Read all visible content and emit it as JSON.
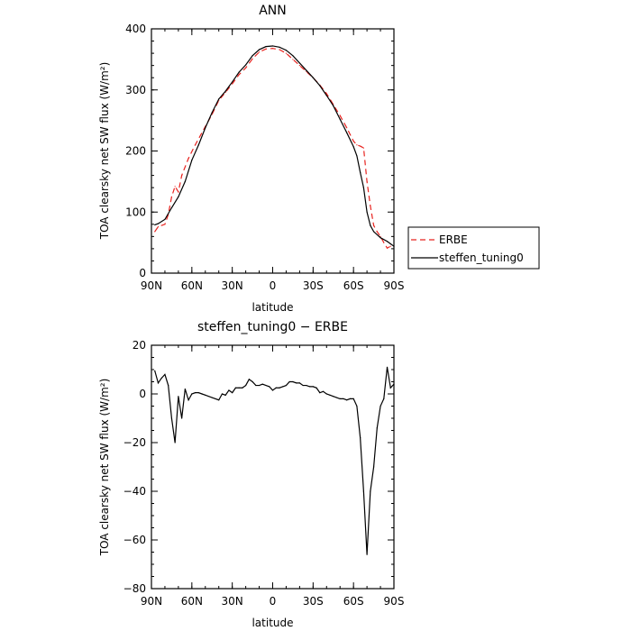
{
  "chart_data": [
    {
      "type": "line",
      "title": "ANN",
      "xlabel": "latitude",
      "ylabel": "TOA clearsky net SW flux (W/m²)",
      "xlim": [
        90,
        -90
      ],
      "ylim": [
        0,
        400
      ],
      "x_ticks": [
        90,
        60,
        30,
        0,
        -30,
        -60,
        -90
      ],
      "x_tick_labels": [
        "90N",
        "60N",
        "30N",
        "0",
        "30S",
        "60S",
        "90S"
      ],
      "y_ticks": [
        0,
        100,
        200,
        300,
        400
      ],
      "y_tick_labels": [
        "0",
        "100",
        "200",
        "300",
        "400"
      ],
      "legend": {
        "position": "right",
        "entries": [
          "ERBE",
          "steffen_tuning0"
        ]
      },
      "series": [
        {
          "name": "ERBE",
          "color": "#e8231f",
          "dash": "6,4",
          "points": [
            [
              87.5,
              68
            ],
            [
              85,
              76
            ],
            [
              80,
              80
            ],
            [
              77.5,
              96
            ],
            [
              75,
              125
            ],
            [
              72.5,
              142
            ],
            [
              70,
              133
            ],
            [
              67.5,
              160
            ],
            [
              62.5,
              188
            ],
            [
              57.5,
              210
            ],
            [
              50,
              240
            ],
            [
              45,
              260
            ],
            [
              40,
              283
            ],
            [
              35,
              296
            ],
            [
              30,
              310
            ],
            [
              25,
              325
            ],
            [
              20,
              336
            ],
            [
              15,
              351
            ],
            [
              10,
              362
            ],
            [
              5,
              367
            ],
            [
              0,
              368
            ],
            [
              -5,
              366
            ],
            [
              -10,
              360
            ],
            [
              -15,
              350
            ],
            [
              -20,
              340
            ],
            [
              -25,
              330
            ],
            [
              -30,
              320
            ],
            [
              -35,
              308
            ],
            [
              -40,
              294
            ],
            [
              -45,
              276
            ],
            [
              -50,
              258
            ],
            [
              -55,
              238
            ],
            [
              -60,
              216
            ],
            [
              -62.5,
              210
            ],
            [
              -65,
              208
            ],
            [
              -67.5,
              205
            ],
            [
              -70,
              150
            ],
            [
              -72.5,
              110
            ],
            [
              -75,
              78
            ],
            [
              -77.5,
              68
            ],
            [
              -80,
              60
            ],
            [
              -82.5,
              50
            ],
            [
              -85,
              41
            ],
            [
              -87.5,
              44
            ]
          ]
        },
        {
          "name": "steffen_tuning0",
          "color": "#000000",
          "dash": "",
          "points": [
            [
              87.5,
              79
            ],
            [
              85,
              81
            ],
            [
              80,
              88
            ],
            [
              75,
              107
            ],
            [
              70,
              125
            ],
            [
              65,
              150
            ],
            [
              60,
              185
            ],
            [
              55,
              210
            ],
            [
              50,
              238
            ],
            [
              45,
              263
            ],
            [
              40,
              285
            ],
            [
              35,
              298
            ],
            [
              30,
              313
            ],
            [
              25,
              329
            ],
            [
              20,
              341
            ],
            [
              15,
              356
            ],
            [
              10,
              366
            ],
            [
              5,
              371
            ],
            [
              0,
              372
            ],
            [
              -5,
              370
            ],
            [
              -10,
              365
            ],
            [
              -15,
              356
            ],
            [
              -20,
              344
            ],
            [
              -25,
              332
            ],
            [
              -30,
              320
            ],
            [
              -35,
              307
            ],
            [
              -40,
              291
            ],
            [
              -45,
              274
            ],
            [
              -50,
              252
            ],
            [
              -55,
              230
            ],
            [
              -60,
              207
            ],
            [
              -62.5,
              192
            ],
            [
              -65,
              165
            ],
            [
              -67.5,
              140
            ],
            [
              -70,
              100
            ],
            [
              -72.5,
              78
            ],
            [
              -75,
              68
            ],
            [
              -80,
              58
            ],
            [
              -85,
              52
            ],
            [
              -87.5,
              48
            ],
            [
              -90,
              44
            ]
          ]
        }
      ]
    },
    {
      "type": "line",
      "title": "steffen_tuning0 − ERBE",
      "xlabel": "latitude",
      "ylabel": "TOA clearsky net SW flux (W/m²)",
      "xlim": [
        90,
        -90
      ],
      "ylim": [
        -80,
        20
      ],
      "x_ticks": [
        90,
        60,
        30,
        0,
        -30,
        -60,
        -90
      ],
      "x_tick_labels": [
        "90N",
        "60N",
        "30N",
        "0",
        "30S",
        "60S",
        "90S"
      ],
      "y_ticks": [
        -80,
        -60,
        -40,
        -20,
        0,
        20
      ],
      "y_tick_labels": [
        "−80",
        "−60",
        "−40",
        "−20",
        "0",
        "20"
      ],
      "series": [
        {
          "name": "steffen_tuning0 − ERBE",
          "color": "#000000",
          "dash": "",
          "points": [
            [
              87.5,
              9.5
            ],
            [
              85,
              4.5
            ],
            [
              82.5,
              6.5
            ],
            [
              80,
              8
            ],
            [
              77.5,
              3.5
            ],
            [
              75,
              -10
            ],
            [
              72.5,
              -20
            ],
            [
              70,
              -1
            ],
            [
              67.5,
              -10
            ],
            [
              65,
              2
            ],
            [
              62.5,
              -2.5
            ],
            [
              60,
              0
            ],
            [
              57.5,
              0.5
            ],
            [
              55,
              0.5
            ],
            [
              52.5,
              0
            ],
            [
              50,
              -0.5
            ],
            [
              45,
              -1.5
            ],
            [
              40,
              -2.5
            ],
            [
              37.5,
              0
            ],
            [
              35,
              -0.5
            ],
            [
              32.5,
              1.5
            ],
            [
              30,
              0.5
            ],
            [
              27.5,
              2.5
            ],
            [
              25,
              2.5
            ],
            [
              22.5,
              2.5
            ],
            [
              20,
              3.5
            ],
            [
              17.5,
              6
            ],
            [
              15,
              5
            ],
            [
              12.5,
              3.5
            ],
            [
              10,
              3.5
            ],
            [
              7.5,
              4
            ],
            [
              5,
              3.5
            ],
            [
              2.5,
              3
            ],
            [
              0,
              1.5
            ],
            [
              -2.5,
              2.5
            ],
            [
              -5,
              2.5
            ],
            [
              -7.5,
              3
            ],
            [
              -10,
              3.5
            ],
            [
              -12.5,
              5
            ],
            [
              -15,
              5
            ],
            [
              -17.5,
              4.5
            ],
            [
              -20,
              4.5
            ],
            [
              -22.5,
              3.5
            ],
            [
              -25,
              3.5
            ],
            [
              -27.5,
              3
            ],
            [
              -30,
              3
            ],
            [
              -32.5,
              2.5
            ],
            [
              -35,
              0.5
            ],
            [
              -37.5,
              1
            ],
            [
              -40,
              0
            ],
            [
              -42.5,
              -0.5
            ],
            [
              -45,
              -1
            ],
            [
              -47.5,
              -1.5
            ],
            [
              -50,
              -2
            ],
            [
              -52.5,
              -2
            ],
            [
              -55,
              -2.5
            ],
            [
              -57.5,
              -2
            ],
            [
              -60,
              -2
            ],
            [
              -62.5,
              -5
            ],
            [
              -65,
              -18
            ],
            [
              -67.5,
              -40
            ],
            [
              -70,
              -66
            ],
            [
              -72.5,
              -40
            ],
            [
              -75,
              -30
            ],
            [
              -77.5,
              -14
            ],
            [
              -80,
              -5
            ],
            [
              -82.5,
              -2
            ],
            [
              -85,
              11
            ],
            [
              -87.5,
              2.5
            ],
            [
              -90,
              4
            ]
          ]
        }
      ]
    }
  ]
}
